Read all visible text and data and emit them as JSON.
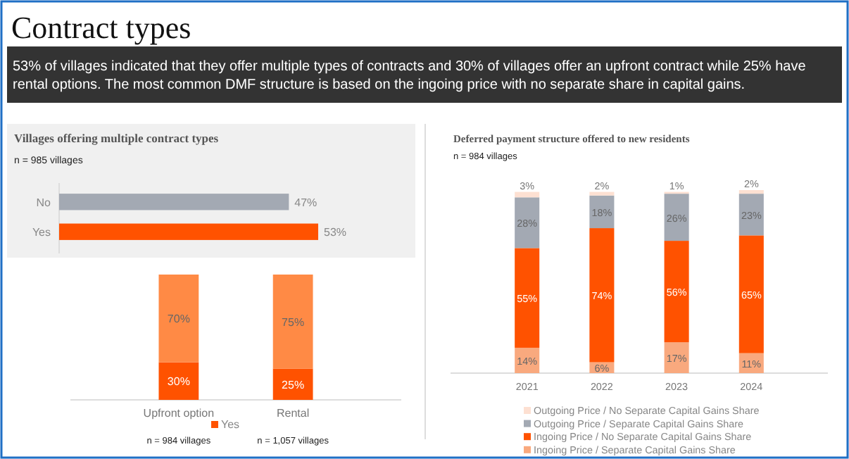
{
  "chart_data": [
    {
      "type": "other",
      "title": "Contract types",
      "subtitle": "53% of villages indicated that they offer multiple types of contracts and 30% of villages offer an upfront contract while 25% have rental options. The most common DMF structure is based on the ingoing price with no separate share in capital gains."
    },
    {
      "type": "bar",
      "orientation": "horizontal",
      "title": "Villages offering multiple contract types",
      "subtitle": "n = 985 villages",
      "categories": [
        "No",
        "Yes"
      ],
      "values": [
        47,
        53
      ],
      "value_labels": [
        "47%",
        "53%"
      ],
      "colors": [
        "#a3a9b3",
        "#ff5200"
      ]
    },
    {
      "type": "bar",
      "stacked": true,
      "categories": [
        "Upfront option",
        "Rental"
      ],
      "legend": "bottom",
      "annotations": [
        "n = 984 villages",
        "n = 1,057 villages"
      ],
      "series": [
        {
          "name": "Yes",
          "color": "#ff5200",
          "values": [
            30,
            25
          ],
          "value_labels": [
            "30%",
            "25%"
          ]
        },
        {
          "color": "#ff8a45",
          "values": [
            70,
            75
          ],
          "value_labels": [
            "70%",
            "75%"
          ]
        }
      ]
    },
    {
      "type": "bar",
      "stacked": true,
      "title": "Deferred payment structure offered to new residents",
      "subtitle": "n = 984 villages",
      "categories": [
        "2021",
        "2022",
        "2023",
        "2024"
      ],
      "legend": "bottom",
      "series": [
        {
          "name": "Ingoing Price / Separate Capital Gains Share",
          "color": "#f9a97e",
          "values": [
            14,
            6,
            17,
            11
          ],
          "value_labels": [
            "14%",
            "6%",
            "17%",
            "11%"
          ]
        },
        {
          "name": "Ingoing Price / No Separate Capital Gains Share",
          "color": "#ff5200",
          "values": [
            55,
            74,
            56,
            65
          ],
          "value_labels": [
            "55%",
            "74%",
            "56%",
            "65%"
          ]
        },
        {
          "name": "Outgoing Price / Separate Capital Gains Share",
          "color": "#a3a9b3",
          "values": [
            28,
            18,
            26,
            23
          ],
          "value_labels": [
            "28%",
            "18%",
            "26%",
            "23%"
          ]
        },
        {
          "name": "Outgoing Price / No Separate Capital Gains Share",
          "color": "#fde0d2",
          "values": [
            3,
            2,
            1,
            2
          ],
          "value_labels": [
            "3%",
            "2%",
            "1%",
            "2%"
          ]
        }
      ]
    }
  ]
}
